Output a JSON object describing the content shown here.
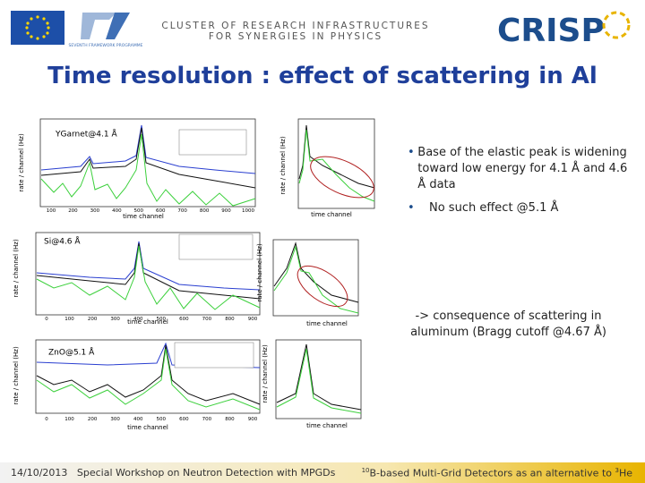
{
  "header": {
    "eu_caption": "SEVENTH FRAMEWORK PROGRAMME",
    "cluster_line1": "CLUSTER OF RESEARCH INFRASTRUCTURES",
    "cluster_line2": "FOR SYNERGIES IN PHYSICS",
    "logo": "CRISP"
  },
  "title": "Time resolution : effect of scattering in Al",
  "plots": [
    {
      "label": "YGarnet@4.1 Å",
      "y_label": "rate / channel (Hz)",
      "x_label": "time channel",
      "zoom_y_label": "rate / channel (Hz)",
      "zoom_x_label": "time channel",
      "xticks": [
        "100",
        "200",
        "300",
        "400",
        "500",
        "600",
        "700",
        "800",
        "900",
        "1000"
      ]
    },
    {
      "label": "Si@4.6 Å",
      "y_label": "rate / channel (Hz)",
      "x_label": "time channel",
      "zoom_y_label": "rate / channel (Hz)",
      "zoom_x_label": "time channel",
      "xticks": [
        "0",
        "100",
        "200",
        "300",
        "400",
        "500",
        "600",
        "700",
        "800",
        "900"
      ]
    },
    {
      "label": "ZnO@5.1 Å",
      "y_label": "rate / channel (Hz)",
      "x_label": "time channel",
      "zoom_y_label": "rate / channel (Hz)",
      "zoom_x_label": "time channel",
      "xticks": [
        "0",
        "100",
        "200",
        "300",
        "400",
        "500",
        "600",
        "700",
        "800",
        "900"
      ]
    }
  ],
  "bullets": [
    "Base of the elastic peak is widening toward low energy for 4.1 Å and 4.6 Å data",
    "No such effect @5.1 Å"
  ],
  "note": "-> consequence of scattering in aluminum (Bragg cutoff @4.67 Å)",
  "footer": {
    "date": "14/10/2013",
    "event": "Special Workshop on Neutron Detection with MPGDs",
    "right_sup1": "10",
    "right_text1": "B-based Multi-Grid Detectors as an alternative to ",
    "right_sup2": "3",
    "right_text2": "He"
  }
}
